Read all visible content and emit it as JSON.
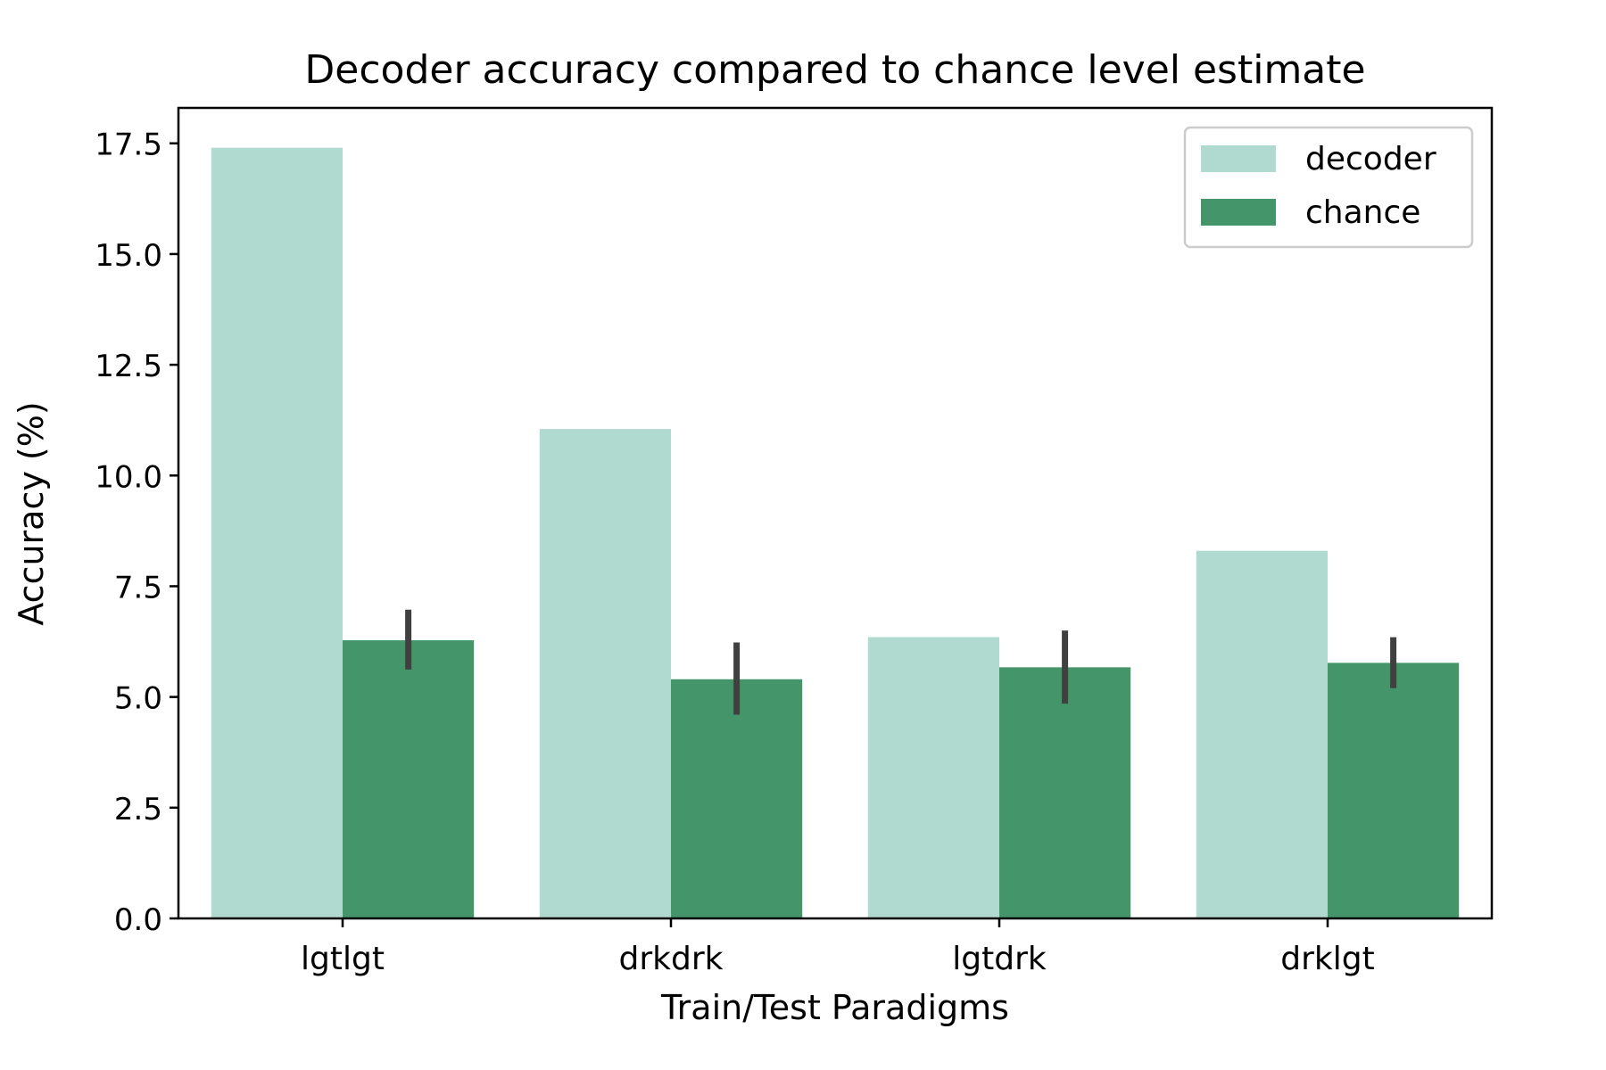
{
  "chart_data": {
    "type": "bar",
    "title": "Decoder accuracy compared to chance level estimate",
    "xlabel": "Train/Test Paradigms",
    "ylabel": "Accuracy (%)",
    "categories": [
      "lgtlgt",
      "drkdrk",
      "lgtdrk",
      "drklgt"
    ],
    "series": [
      {
        "name": "decoder",
        "color": "#b0d9d0",
        "values": [
          17.4,
          11.05,
          6.35,
          8.3
        ]
      },
      {
        "name": "chance",
        "color": "#44966a",
        "values": [
          6.28,
          5.4,
          5.67,
          5.77
        ],
        "error_low": [
          5.62,
          4.6,
          4.85,
          5.2
        ],
        "error_high": [
          6.97,
          6.23,
          6.5,
          6.35
        ]
      }
    ],
    "ylim": [
      0,
      18.3
    ],
    "yticks": [
      0,
      2.5,
      5,
      7.5,
      10,
      12.5,
      15,
      17.5
    ],
    "ytick_labels": [
      "0.0",
      "2.5",
      "5.0",
      "7.5",
      "10.0",
      "12.5",
      "15.0",
      "17.5"
    ],
    "grid": false,
    "legend": {
      "position": "top-right"
    },
    "errorbar_color": "#404040"
  }
}
